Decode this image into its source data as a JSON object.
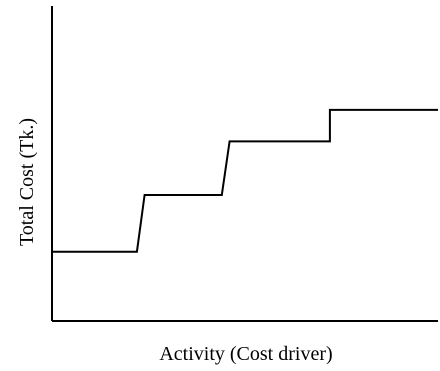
{
  "chart_data": {
    "type": "line",
    "title": "",
    "xlabel": "Activity (Cost driver)",
    "ylabel": "Total Cost (Tk.)",
    "grid": false,
    "legend": "none",
    "xticks_shown": false,
    "yticks_shown": false,
    "line_color": "#000000",
    "xlim": [
      0,
      10
    ],
    "ylim": [
      0,
      10
    ],
    "series": [
      {
        "x": [
          0,
          2.2,
          2.4,
          4.4,
          4.6,
          7.2,
          7.2,
          10
        ],
        "y": [
          2.2,
          2.2,
          4.0,
          4.0,
          5.7,
          5.7,
          6.7,
          6.7
        ]
      }
    ]
  }
}
